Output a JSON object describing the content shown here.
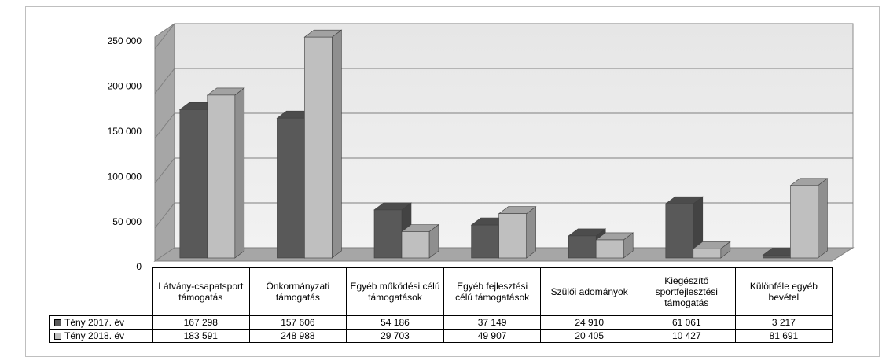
{
  "chart_data": {
    "type": "bar3d",
    "categories": [
      "Látvány-csapatsport támogatás",
      "Önkormányzati támogatás",
      "Egyéb működési célú támogatások",
      "Egyéb fejlesztési célú támogatások",
      "Szülői adományok",
      "Kiegészítő sportfejlesztési támogatás",
      "Különféle egyéb bevétel"
    ],
    "series": [
      {
        "name": "Tény 2017. év",
        "color": "#595959",
        "values": [
          167298,
          157606,
          54186,
          37149,
          24910,
          61061,
          3217
        ],
        "value_labels": [
          "167 298",
          "157 606",
          "54 186",
          "37 149",
          "24 910",
          "61 061",
          "3 217"
        ]
      },
      {
        "name": "Tény 2018. év",
        "color": "#bfbfbf",
        "values": [
          183591,
          248988,
          29703,
          49907,
          20405,
          10427,
          81691
        ],
        "value_labels": [
          "183 591",
          "248 988",
          "29 703",
          "49 907",
          "20 405",
          "10 427",
          "81 691"
        ]
      }
    ],
    "ylim": [
      0,
      250000
    ],
    "yticks": [
      0,
      {
        "value": 50000,
        "label": "50 000"
      },
      {
        "value": 100000,
        "label": "100 000"
      },
      {
        "value": 150000,
        "label": "150 000"
      },
      {
        "value": 200000,
        "label": "200 000"
      },
      {
        "value": 250000,
        "label": "250 000"
      }
    ],
    "grid": true
  }
}
